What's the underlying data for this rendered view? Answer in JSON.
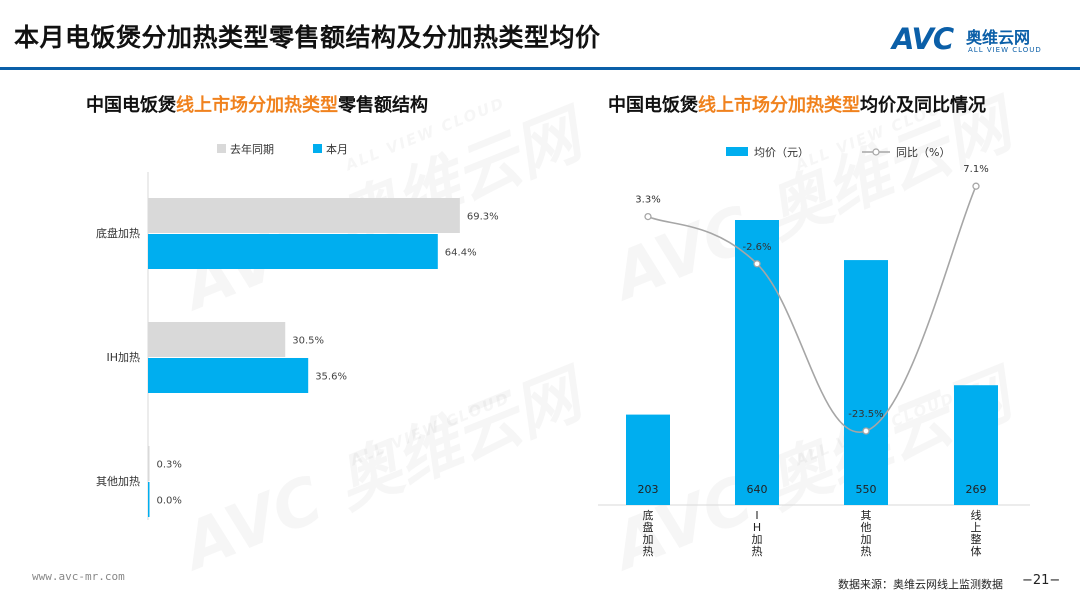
{
  "page": {
    "title": "本月电饭煲分加热类型零售额结构及分加热类型均价",
    "logo": {
      "brand": "AVC",
      "name_cn": "奥维云网",
      "name_en": "ALL VIEW CLOUD"
    },
    "watermark": {
      "brand": "AVC",
      "name_cn": "奥维云网",
      "name_en": "ALL VIEW CLOUD"
    },
    "footer": {
      "url": "www.avc-mr.com",
      "source": "数据来源：奥维云网线上监测数据",
      "page_number": "−21−"
    },
    "colors": {
      "accent_blue": "#00aeef",
      "gray_bar": "#d9d9d9",
      "line_gray": "#a6a6a6",
      "highlight": "#f0821e",
      "brand": "#0b5fa8"
    }
  },
  "left_chart": {
    "title_prefix": "中国电饭煲",
    "title_highlight": "线上市场分加热类型",
    "title_suffix": "零售额结构"
  },
  "right_chart": {
    "title_prefix": "中国电饭煲",
    "title_highlight": "线上市场分加热类型",
    "title_suffix": "均价及同比情况"
  },
  "chart_data": [
    {
      "type": "bar",
      "orientation": "horizontal",
      "categories": [
        "底盘加热",
        "IH加热",
        "其他加热"
      ],
      "series": [
        {
          "name": "去年同期",
          "values": [
            69.3,
            30.5,
            0.3
          ],
          "labels": [
            "69.3%",
            "30.5%",
            "0.3%"
          ],
          "color": "#d9d9d9"
        },
        {
          "name": "本月",
          "values": [
            64.4,
            35.6,
            0.0
          ],
          "labels": [
            "64.4%",
            "35.6%",
            "0.0%"
          ],
          "color": "#00aeef"
        }
      ],
      "xlim": [
        0,
        100
      ],
      "legend": "top"
    },
    {
      "type": "bar",
      "categories": [
        "底盘加热",
        "IH加热",
        "其他加热",
        "线上整体"
      ],
      "tick_labels": [
        "底\n盘\n加\n热",
        "I\nH\n加\n热",
        "其\n他\n加\n热",
        "线\n上\n整\n体"
      ],
      "series": [
        {
          "name": "均价（元）",
          "type": "bar",
          "values": [
            203,
            640,
            550,
            269
          ],
          "labels": [
            "203",
            "640",
            "550",
            "269"
          ],
          "color": "#00aeef"
        },
        {
          "name": "同比（%）",
          "type": "line",
          "values": [
            3.3,
            -2.6,
            -23.5,
            7.1
          ],
          "labels": [
            "3.3%",
            "-2.6%",
            "-23.5%",
            "7.1%"
          ],
          "color": "#a6a6a6"
        }
      ],
      "ylim_bar": [
        0,
        700
      ],
      "ylim_line": [
        -25,
        10
      ],
      "legend": "top"
    }
  ]
}
